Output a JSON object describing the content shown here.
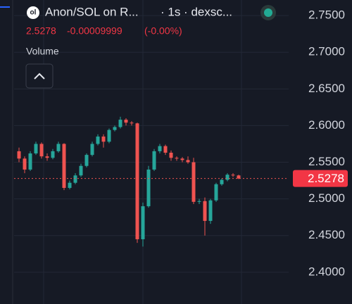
{
  "chart_data": {
    "type": "candlestick",
    "title": "Anon/SOL on R...",
    "subtitle": "· 1s · dexsc...",
    "header_price": "2.5278",
    "header_change": "-0.00009999",
    "header_change_pct": "(-0.00%)",
    "indicator": "Volume",
    "last_price": 2.5278,
    "up_color": "#26a69a",
    "down_color": "#ef5350",
    "ylim": [
      2.3567,
      2.7712
    ],
    "yticks": [
      {
        "value": 2.4,
        "label": "2.4000"
      },
      {
        "value": 2.45,
        "label": "2.4500"
      },
      {
        "value": 2.5,
        "label": "2.5000"
      },
      {
        "value": 2.55,
        "label": "2.5500"
      },
      {
        "value": 2.6,
        "label": "2.6000"
      },
      {
        "value": 2.65,
        "label": "2.6500"
      },
      {
        "value": 2.7,
        "label": "2.7000"
      },
      {
        "value": 2.75,
        "label": "2.7500"
      }
    ],
    "grid": true,
    "open": [
      2.565,
      2.555,
      2.54,
      2.562,
      2.575,
      2.558,
      2.556,
      2.565,
      2.575,
      2.515,
      2.522,
      2.532,
      2.545,
      2.56,
      2.575,
      2.585,
      2.578,
      2.594,
      2.598,
      2.608,
      2.604,
      2.603,
      2.445,
      2.49,
      2.54,
      2.565,
      2.572,
      2.563,
      2.556,
      2.555,
      2.553,
      2.55,
      2.496,
      2.497,
      2.47,
      2.498,
      2.52,
      2.526,
      2.533,
      2.532
    ],
    "high": [
      2.57,
      2.558,
      2.565,
      2.578,
      2.577,
      2.562,
      2.568,
      2.578,
      2.576,
      2.525,
      2.535,
      2.548,
      2.562,
      2.578,
      2.588,
      2.588,
      2.596,
      2.6,
      2.612,
      2.61,
      2.606,
      2.604,
      2.495,
      2.545,
      2.568,
      2.575,
      2.574,
      2.566,
      2.558,
      2.557,
      2.558,
      2.556,
      2.5,
      2.502,
      2.5,
      2.522,
      2.528,
      2.535,
      2.535,
      2.533
    ],
    "low": [
      2.55,
      2.535,
      2.538,
      2.56,
      2.555,
      2.552,
      2.554,
      2.563,
      2.512,
      2.513,
      2.52,
      2.53,
      2.543,
      2.558,
      2.573,
      2.57,
      2.576,
      2.592,
      2.596,
      2.6,
      2.6,
      2.44,
      2.435,
      2.488,
      2.538,
      2.562,
      2.56,
      2.552,
      2.552,
      2.55,
      2.548,
      2.493,
      2.493,
      2.45,
      2.466,
      2.496,
      2.518,
      2.524,
      2.53,
      2.527
    ],
    "close": [
      2.555,
      2.54,
      2.562,
      2.575,
      2.558,
      2.556,
      2.565,
      2.575,
      2.515,
      2.522,
      2.532,
      2.545,
      2.56,
      2.575,
      2.585,
      2.578,
      2.594,
      2.598,
      2.608,
      2.604,
      2.603,
      2.445,
      2.49,
      2.54,
      2.565,
      2.572,
      2.563,
      2.556,
      2.555,
      2.553,
      2.55,
      2.496,
      2.497,
      2.47,
      2.498,
      2.52,
      2.526,
      2.533,
      2.532,
      2.5278
    ]
  }
}
